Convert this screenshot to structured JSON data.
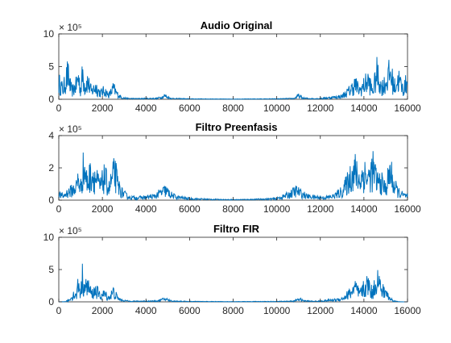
{
  "chart_data": [
    {
      "type": "line",
      "title": "Audio Original",
      "xlabel": "",
      "ylabel": "",
      "xlim": [
        0,
        16000
      ],
      "ylim": [
        0,
        10
      ],
      "y_exponent": "× 10⁵",
      "xticks": [
        "0",
        "2000",
        "4000",
        "6000",
        "8000",
        "10000",
        "12000",
        "14000",
        "16000"
      ],
      "yticks": [
        "0",
        "5",
        "10"
      ],
      "line_color": "#0072BD",
      "grid": false,
      "series": [
        {
          "x": [
            0,
            200,
            400,
            600,
            800,
            900,
            1000,
            1100,
            1200,
            1300,
            1500,
            1700,
            1900,
            2100,
            2300,
            2500,
            2700,
            2900,
            3200,
            3600,
            4000,
            4500,
            4900,
            5000,
            5200,
            5600,
            6000,
            7000,
            8000,
            9000,
            10000,
            10800,
            11000,
            11200,
            11600,
            12000,
            12400,
            12800,
            13000,
            13200,
            13400,
            13600,
            13800,
            14000,
            14200,
            14400,
            14600,
            14800,
            15000,
            15200,
            15400,
            15600,
            15800,
            16000
          ],
          "y": [
            4.2,
            2.5,
            6.4,
            2.0,
            3.6,
            5.8,
            2.2,
            6.8,
            3.0,
            4.8,
            2.0,
            3.2,
            1.6,
            2.2,
            1.0,
            2.8,
            1.2,
            0.4,
            0.2,
            0.15,
            0.2,
            0.2,
            0.9,
            0.5,
            0.2,
            0.15,
            0.1,
            0.08,
            0.05,
            0.08,
            0.1,
            0.2,
            0.9,
            0.3,
            0.15,
            0.2,
            0.4,
            0.6,
            0.8,
            1.6,
            2.5,
            3.8,
            2.2,
            3.5,
            4.8,
            2.0,
            6.6,
            3.0,
            4.2,
            6.8,
            3.2,
            5.0,
            2.4,
            4.8
          ]
        }
      ]
    },
    {
      "type": "line",
      "title": "Filtro Preenfasis",
      "xlabel": "",
      "ylabel": "",
      "xlim": [
        0,
        16000
      ],
      "ylim": [
        0,
        4
      ],
      "y_exponent": "× 10⁵",
      "xticks": [
        "0",
        "2000",
        "4000",
        "6000",
        "8000",
        "10000",
        "12000",
        "14000",
        "16000"
      ],
      "yticks": [
        "0",
        "2",
        "4"
      ],
      "line_color": "#0072BD",
      "grid": false,
      "series": [
        {
          "x": [
            0,
            200,
            400,
            600,
            800,
            900,
            1000,
            1100,
            1200,
            1300,
            1500,
            1700,
            1900,
            2100,
            2300,
            2500,
            2600,
            2700,
            2900,
            3200,
            3600,
            4000,
            4400,
            4700,
            4900,
            5100,
            5400,
            6000,
            7000,
            8000,
            9000,
            10000,
            10600,
            10900,
            11100,
            11400,
            11800,
            12200,
            12600,
            13000,
            13200,
            13400,
            13600,
            13800,
            14000,
            14200,
            14400,
            14600,
            14800,
            15000,
            15200,
            15400,
            15600,
            15800,
            16000
          ],
          "y": [
            0.6,
            0.4,
            0.8,
            1.0,
            1.4,
            2.2,
            1.2,
            3.0,
            3.2,
            1.8,
            2.8,
            2.2,
            1.4,
            2.4,
            1.2,
            2.6,
            2.7,
            1.6,
            0.8,
            0.3,
            0.25,
            0.3,
            0.4,
            0.8,
            1.0,
            0.6,
            0.3,
            0.15,
            0.08,
            0.05,
            0.08,
            0.15,
            0.6,
            1.0,
            0.7,
            0.4,
            0.3,
            0.25,
            0.4,
            0.9,
            1.6,
            2.6,
            3.0,
            2.0,
            2.8,
            2.2,
            3.2,
            2.0,
            1.8,
            1.2,
            3.0,
            1.4,
            0.8,
            0.5,
            0.4
          ]
        }
      ]
    },
    {
      "type": "line",
      "title": "Filtro FIR",
      "xlabel": "",
      "ylabel": "",
      "xlim": [
        0,
        16000
      ],
      "ylim": [
        0,
        10
      ],
      "y_exponent": "× 10⁵",
      "xticks": [
        "0",
        "2000",
        "4000",
        "6000",
        "8000",
        "10000",
        "12000",
        "14000",
        "16000"
      ],
      "yticks": [
        "0",
        "5",
        "10"
      ],
      "line_color": "#0072BD",
      "grid": false,
      "series": [
        {
          "x": [
            0,
            300,
            500,
            700,
            800,
            900,
            1000,
            1100,
            1200,
            1300,
            1500,
            1700,
            1900,
            2100,
            2300,
            2500,
            2700,
            2900,
            3200,
            3600,
            4000,
            4500,
            4900,
            5000,
            5200,
            5600,
            6000,
            7000,
            8000,
            9000,
            10000,
            10800,
            11000,
            11200,
            11600,
            12000,
            12400,
            12800,
            13000,
            13200,
            13400,
            13600,
            13800,
            14000,
            14200,
            14400,
            14600,
            14800,
            15000,
            15200,
            15400,
            15600,
            15800,
            16000
          ],
          "y": [
            0,
            0.05,
            0.5,
            2.0,
            1.4,
            4.8,
            2.0,
            6.8,
            3.0,
            4.6,
            2.0,
            3.0,
            1.5,
            2.0,
            1.0,
            2.6,
            1.0,
            0.4,
            0.2,
            0.15,
            0.2,
            0.2,
            0.8,
            0.5,
            0.2,
            0.15,
            0.1,
            0.08,
            0.05,
            0.08,
            0.1,
            0.2,
            0.8,
            0.3,
            0.15,
            0.2,
            0.4,
            0.6,
            0.8,
            1.6,
            2.5,
            3.6,
            2.0,
            3.4,
            4.6,
            2.0,
            6.6,
            3.0,
            2.5,
            0.8,
            0.2,
            0.05,
            0,
            0
          ]
        }
      ]
    }
  ]
}
